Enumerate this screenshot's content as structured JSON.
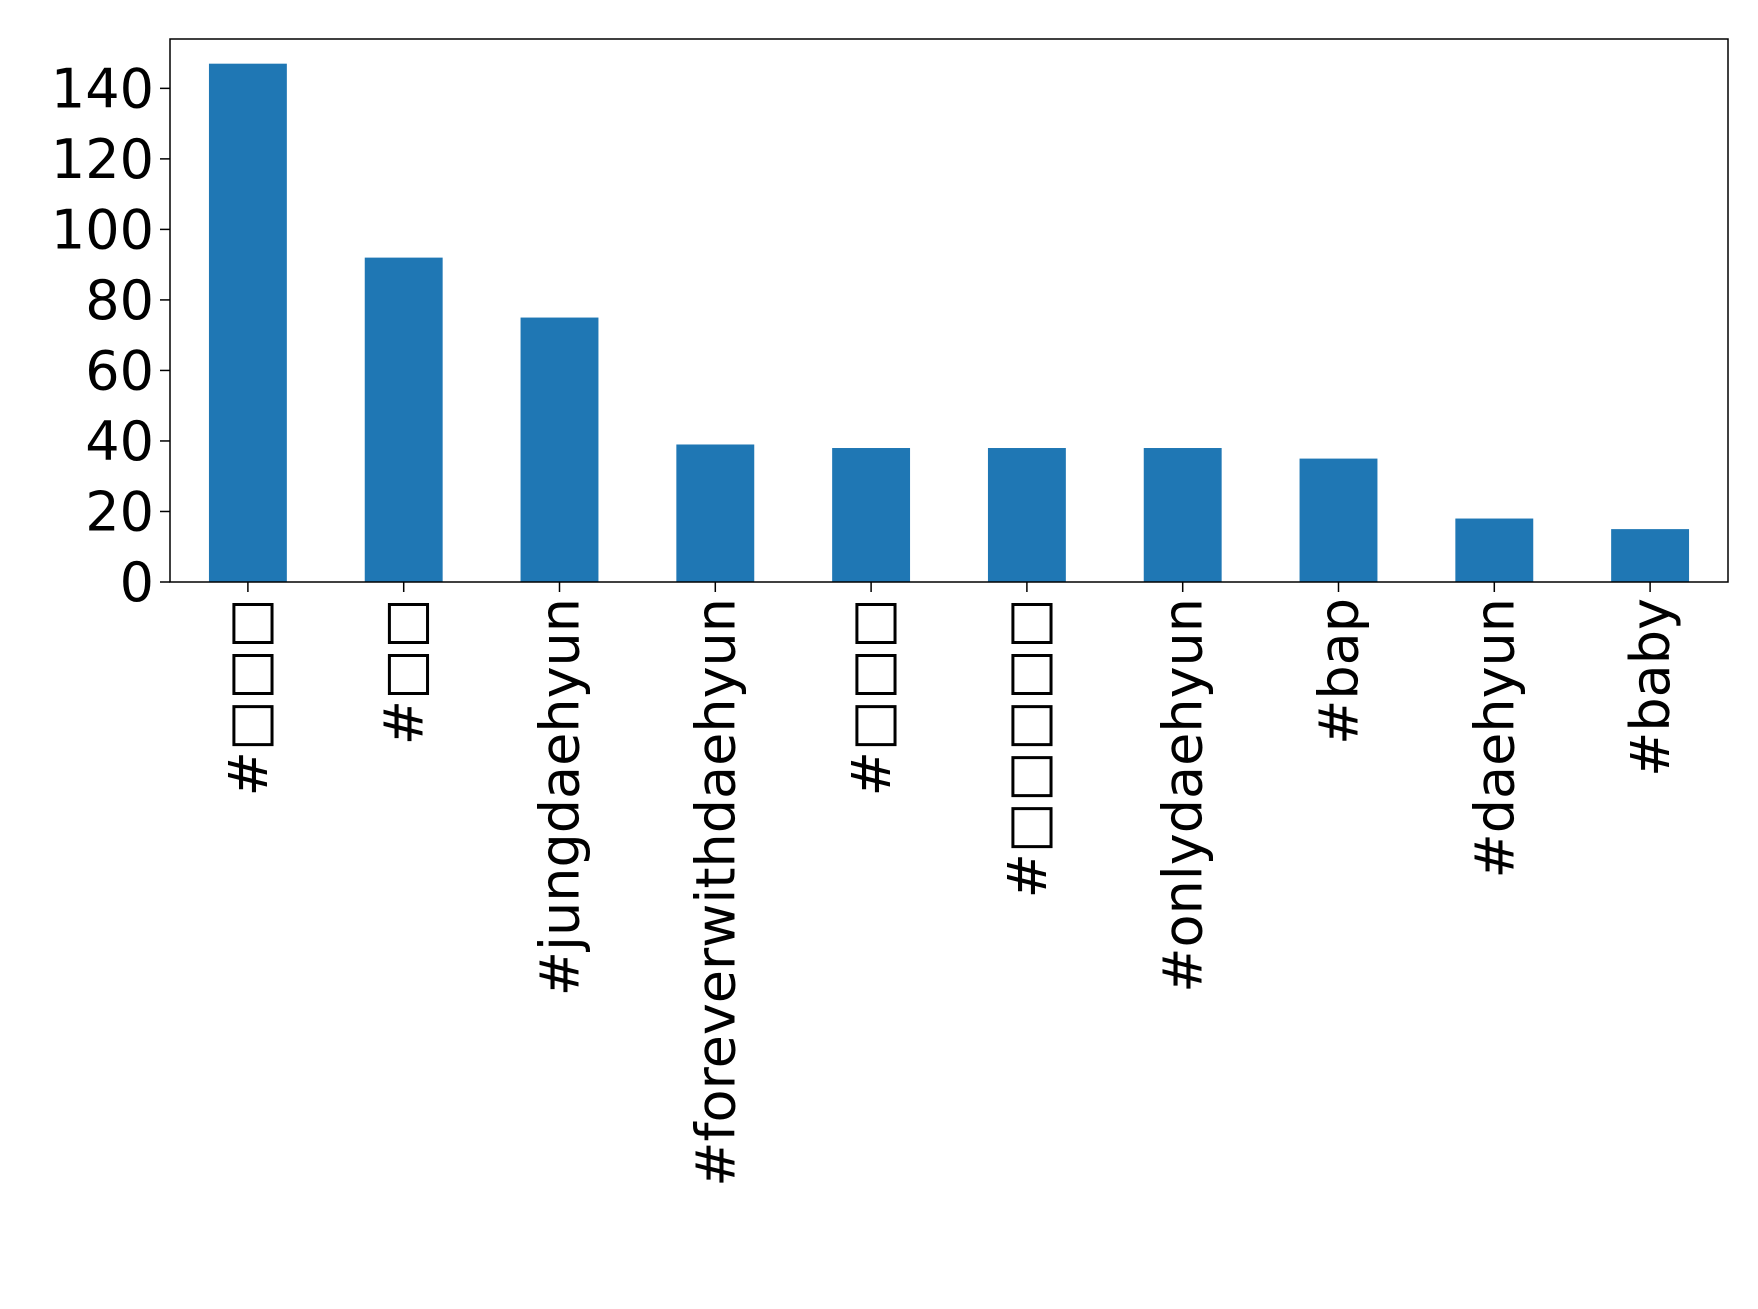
{
  "chart_data": {
    "type": "bar",
    "categories": [
      "#□□□",
      "#□□",
      "#jungdaehyun",
      "#foreverwithdaehyun",
      "#□□□",
      "#□□□□□",
      "#onlydaehyun",
      "#bap",
      "#daehyun",
      "#baby"
    ],
    "values": [
      147,
      92,
      75,
      39,
      38,
      38,
      38,
      35,
      18,
      15
    ],
    "color": "#1f77b4",
    "ylim": [
      0,
      154
    ],
    "yticks": [
      0,
      20,
      40,
      60,
      80,
      100,
      120,
      140
    ],
    "grid": false
  }
}
